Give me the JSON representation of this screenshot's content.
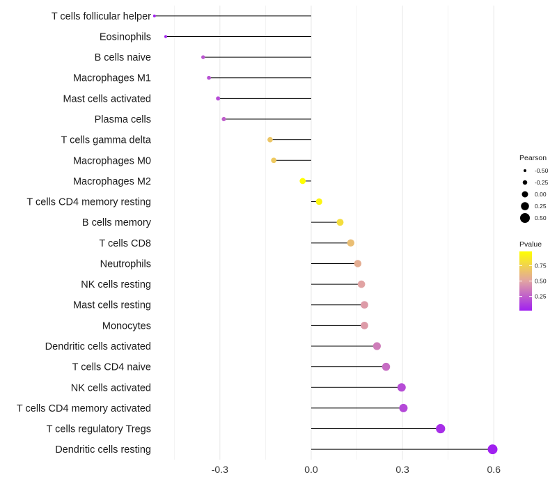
{
  "chart_data": {
    "type": "lollipop",
    "title": "",
    "xlabel": "",
    "ylabel": "",
    "xlim": [
      -0.51,
      0.62
    ],
    "x_ticks": [
      -0.3,
      0.0,
      0.3,
      0.6
    ],
    "x_tick_labels": [
      "-0.3",
      "0.0",
      "0.3",
      "0.6"
    ],
    "grid": true,
    "categories": [
      "T cells follicular helper",
      "Eosinophils",
      "B cells naive",
      "Macrophages M1",
      "Mast cells activated",
      "Plasma cells",
      "T cells gamma delta",
      "Macrophages M0",
      "Macrophages M2",
      "T cells CD4 memory resting",
      "B cells memory",
      "T cells CD8",
      "Neutrophils",
      "NK cells resting",
      "Mast cells resting",
      "Monocytes",
      "Dendritic cells activated",
      "T cells CD4 naive",
      "NK cells activated",
      "T cells CD4 memory activated",
      "T cells regulatory  Tregs",
      "Dendritic cells resting"
    ],
    "values": [
      -0.515,
      -0.478,
      -0.355,
      -0.336,
      -0.306,
      -0.287,
      -0.135,
      -0.123,
      -0.028,
      0.026,
      0.095,
      0.13,
      0.153,
      0.165,
      0.175,
      0.175,
      0.216,
      0.246,
      0.297,
      0.303,
      0.425,
      0.596
    ],
    "pvalues": [
      0.03,
      0.03,
      0.22,
      0.2,
      0.18,
      0.25,
      0.68,
      0.7,
      0.98,
      0.93,
      0.8,
      0.64,
      0.55,
      0.5,
      0.47,
      0.47,
      0.36,
      0.3,
      0.18,
      0.17,
      0.07,
      0.02
    ],
    "size_legend": {
      "title": "Pearson",
      "breaks": [
        -0.5,
        -0.25,
        0.0,
        0.25,
        0.5
      ],
      "labels": [
        "-0.50",
        "-0.25",
        "0.00",
        "0.25",
        "0.50"
      ]
    },
    "color_legend": {
      "title": "Pvalue",
      "breaks": [
        0.25,
        0.5,
        0.75
      ],
      "labels": [
        "0.25",
        "0.50",
        "0.75"
      ],
      "range": [
        0.02,
        0.98
      ],
      "low_color": "#a020f0",
      "mid_color": "#e1a3a3",
      "high_color": "#ffff00"
    },
    "segment_color": "#000000",
    "grid_color": "#ebebeb"
  }
}
